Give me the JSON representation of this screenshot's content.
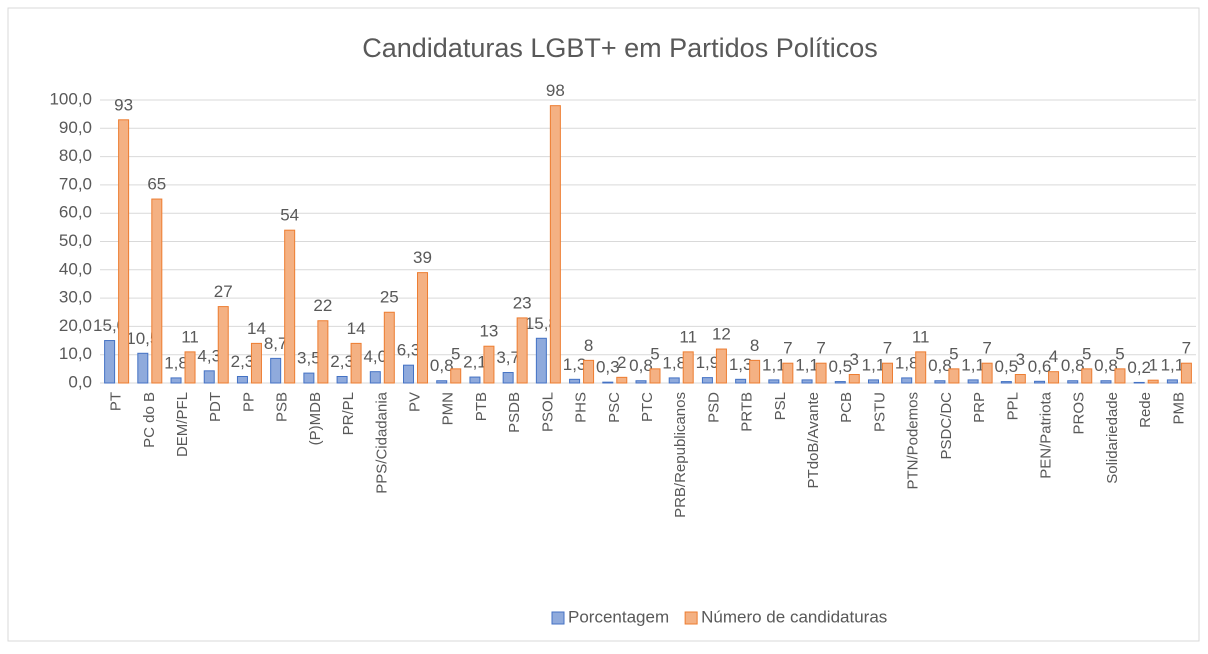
{
  "chart_data": {
    "type": "bar",
    "title": "Candidaturas LGBT+ em Partidos Políticos",
    "categories": [
      "PT",
      "PC do B",
      "DEM/PFL",
      "PDT",
      "PP",
      "PSB",
      "(P)MDB",
      "PR/PL",
      "PPS/Cidadania",
      "PV",
      "PMN",
      "PTB",
      "PSDB",
      "PSOL",
      "PHS",
      "PSC",
      "PTC",
      "PRB/Republicanos",
      "PSD",
      "PRTB",
      "PSL",
      "PTdoB/Avante",
      "PCB",
      "PSTU",
      "PTN/Podemos",
      "PSDC/DC",
      "PRP",
      "PPL",
      "PEN/Patriota",
      "PROS",
      "Solidariedade",
      "Rede",
      "PMB"
    ],
    "series": [
      {
        "name": "Porcentagem",
        "color": "#8faadc",
        "stroke": "#4472c4",
        "values": [
          15.0,
          10.5,
          1.8,
          4.3,
          2.3,
          8.7,
          3.5,
          2.3,
          4.0,
          6.3,
          0.8,
          2.1,
          3.7,
          15.8,
          1.3,
          0.3,
          0.8,
          1.8,
          1.9,
          1.3,
          1.1,
          1.1,
          0.5,
          1.1,
          1.8,
          0.8,
          1.1,
          0.5,
          0.6,
          0.8,
          0.8,
          0.2,
          1.1
        ],
        "value_labels": [
          "15,0",
          "10,5",
          "1,8",
          "4,3",
          "2,3",
          "8,7",
          "3,5",
          "2,3",
          "4,0",
          "6,3",
          "0,8",
          "2,1",
          "3,7",
          "15,8",
          "1,3",
          "0,3",
          "0,8",
          "1,8",
          "1,9",
          "1,3",
          "1,1",
          "1,1",
          "0,5",
          "1,1",
          "1,8",
          "0,8",
          "1,1",
          "0,5",
          "0,6",
          "0,8",
          "0,8",
          "0,2",
          "1,1"
        ]
      },
      {
        "name": "Número de candidaturas",
        "color": "#f4b183",
        "stroke": "#ed7d31",
        "values": [
          93,
          65,
          11,
          27,
          14,
          54,
          22,
          14,
          25,
          39,
          5,
          13,
          23,
          98,
          8,
          2,
          5,
          11,
          12,
          8,
          7,
          7,
          3,
          7,
          11,
          5,
          7,
          3,
          4,
          5,
          5,
          1,
          7
        ]
      }
    ],
    "ylim": [
      0,
      100
    ],
    "yticks": [
      {
        "value": 0,
        "label": "0,0"
      },
      {
        "value": 10,
        "label": "10,0"
      },
      {
        "value": 20,
        "label": "20,0"
      },
      {
        "value": 30,
        "label": "30,0"
      },
      {
        "value": 40,
        "label": "40,0"
      },
      {
        "value": 50,
        "label": "50,0"
      },
      {
        "value": 60,
        "label": "60,0"
      },
      {
        "value": 70,
        "label": "70,0"
      },
      {
        "value": 80,
        "label": "80,0"
      },
      {
        "value": 90,
        "label": "90,0"
      },
      {
        "value": 100,
        "label": "100,0"
      }
    ],
    "grid": true,
    "legend": "bottom"
  }
}
